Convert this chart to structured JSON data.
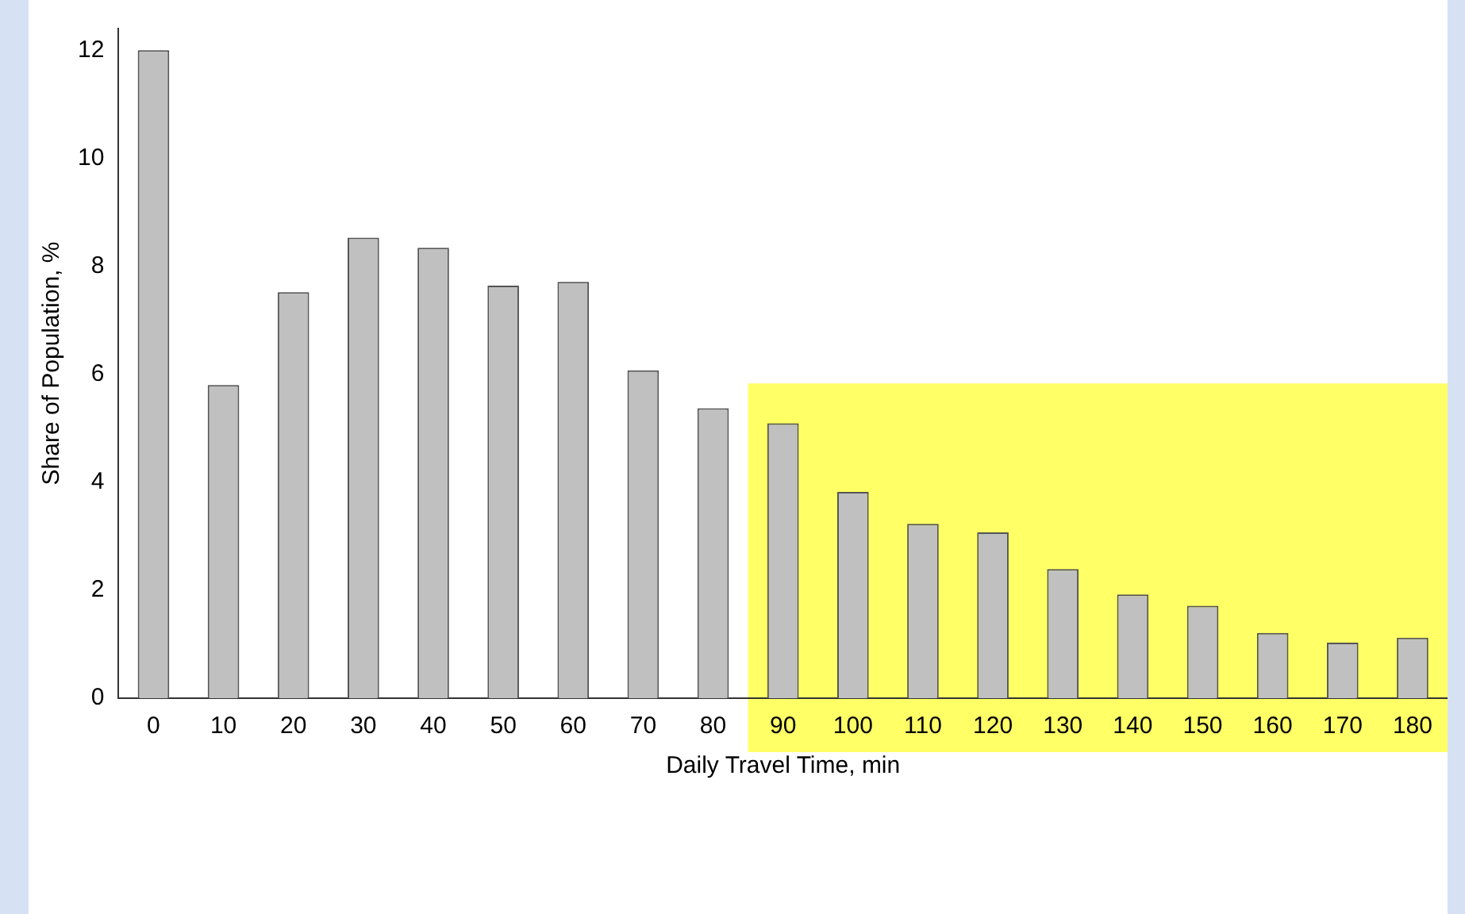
{
  "chart_data": {
    "type": "bar",
    "xlabel": "Daily Travel Time, min",
    "ylabel": "Share of Population, %",
    "categories": [
      "0",
      "10",
      "20",
      "30",
      "40",
      "50",
      "60",
      "70",
      "80",
      "90",
      "100",
      "110",
      "120",
      "130",
      "140",
      "150",
      "160",
      "170",
      "180"
    ],
    "values": [
      12.0,
      5.8,
      7.52,
      8.53,
      8.34,
      7.64,
      7.71,
      6.07,
      5.37,
      5.09,
      3.82,
      3.23,
      3.07,
      2.39,
      1.92,
      1.71,
      1.21,
      1.03,
      1.12
    ],
    "color": "#c0c0c0",
    "ylim": [
      0,
      12.4
    ],
    "yticks": [
      0,
      2,
      4,
      6,
      8,
      10,
      12
    ],
    "grid": false,
    "legend": false,
    "bands": [
      {
        "axis": "x",
        "from": "90",
        "to": "180",
        "color": "#ffff66"
      }
    ]
  }
}
